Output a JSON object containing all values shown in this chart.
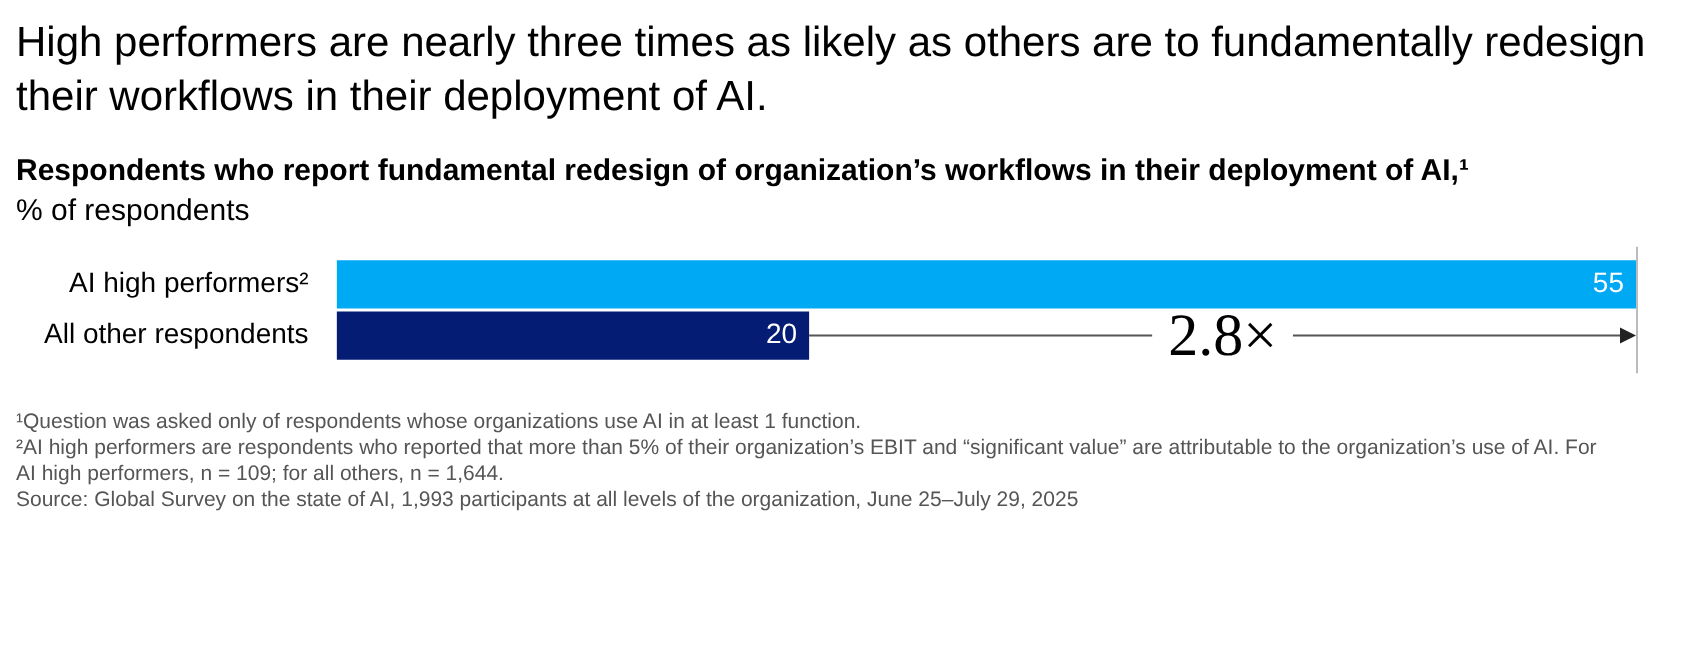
{
  "chart_data": {
    "type": "bar",
    "orientation": "horizontal",
    "title": "High performers are nearly three times as likely as others are to fundamentally redesign their workflows in their deployment of AI.",
    "subtitle": "Respondents who report fundamental redesign of organization’s workflows in their deployment of AI,¹",
    "xlabel": "% of respondents",
    "categories": [
      "AI high performers²",
      "All other respondents"
    ],
    "values": [
      55,
      20
    ],
    "colors": [
      "#00a9f4",
      "#051c75"
    ],
    "xlim": [
      0,
      55
    ],
    "tick_labels": "y",
    "data_labels": true,
    "grid": false,
    "legend": false,
    "annotations": [
      "2.8×",
      "¹Question was asked only of respondents whose organizations use AI in at least 1 function.",
      "²AI high performers are respondents who reported that more than 5% of their organization’s EBIT and “significant value” are attributable to the organization’s use of AI. For AI high performers, n = 109; for all others, n = 1,644.",
      "Source: Global Survey on the state of AI, 1,993 participants at all levels of the organization, June 25–July 29, 2025"
    ]
  }
}
